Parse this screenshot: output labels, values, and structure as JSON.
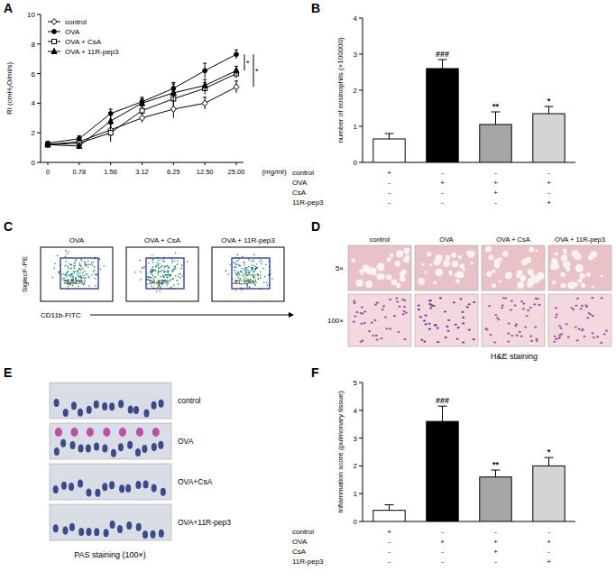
{
  "chart_data": [
    {
      "type": "line",
      "y_label": "RI (cmH₂O/ml/s)",
      "x_label": "(mg/ml)",
      "categories": [
        "0",
        "0.78",
        "1.56",
        "3.12",
        "6.25",
        "12.50",
        "25.00"
      ],
      "series": [
        {
          "name": "control",
          "color": "#000000",
          "marker": "diamond",
          "values": [
            1.2,
            1.4,
            2.2,
            3.0,
            3.6,
            4.0,
            5.1
          ],
          "errors": [
            0.1,
            0.3,
            0.4,
            0.3,
            0.6,
            0.4,
            0.4
          ]
        },
        {
          "name": "OVA",
          "color": "#000000",
          "marker": "circle",
          "values": [
            1.3,
            1.6,
            3.3,
            4.1,
            5.0,
            6.2,
            7.3
          ],
          "errors": [
            0.1,
            0.2,
            0.3,
            0.3,
            0.4,
            0.5,
            0.3
          ]
        },
        {
          "name": "OVA + CsA",
          "color": "#000000",
          "marker": "square",
          "values": [
            1.2,
            1.3,
            2.0,
            3.5,
            4.3,
            5.0,
            6.0
          ],
          "errors": [
            0.1,
            0.2,
            0.6,
            0.3,
            0.5,
            0.4,
            0.3
          ]
        },
        {
          "name": "OVA + 11R-pep3",
          "color": "#000000",
          "marker": "triangle",
          "values": [
            1.2,
            1.1,
            2.8,
            4.0,
            4.7,
            5.2,
            6.2
          ],
          "errors": [
            0.1,
            0.2,
            0.4,
            0.3,
            0.6,
            0.4,
            0.3
          ]
        }
      ],
      "ylim": [
        0,
        10
      ],
      "yticks": [
        0,
        2,
        4,
        6,
        8,
        10
      ],
      "legend": "upper-left",
      "significance": [
        "*",
        "*"
      ]
    },
    {
      "type": "bar",
      "y_label": "number of eosinophils (×100000)",
      "values": [
        0.65,
        2.6,
        1.05,
        1.35
      ],
      "errors": [
        0.15,
        0.25,
        0.35,
        0.2
      ],
      "colors": [
        "#ffffff",
        "#000000",
        "#a6a6a6",
        "#d4d4d4"
      ],
      "annotations": [
        null,
        "###",
        "**",
        "*"
      ],
      "ylim": [
        0,
        4
      ],
      "yticks": [
        0,
        1,
        2,
        3,
        4
      ],
      "treatment_table": [
        {
          "label": "control",
          "signs": [
            "+",
            "-",
            "-",
            "-"
          ]
        },
        {
          "label": "OVA",
          "signs": [
            "-",
            "+",
            "+",
            "+"
          ]
        },
        {
          "label": "CsA",
          "signs": [
            "-",
            "-",
            "+",
            "-"
          ]
        },
        {
          "label": "11R-pep3",
          "signs": [
            "-",
            "-",
            "-",
            "+"
          ]
        }
      ]
    },
    {
      "type": "bar",
      "y_label": "Inflammation score (pulmonary tissue)",
      "values": [
        0.4,
        3.6,
        1.6,
        2.0
      ],
      "errors": [
        0.2,
        0.55,
        0.25,
        0.3
      ],
      "colors": [
        "#ffffff",
        "#000000",
        "#a6a6a6",
        "#d4d4d4"
      ],
      "annotations": [
        null,
        "###",
        "**",
        "*"
      ],
      "ylim": [
        0,
        5
      ],
      "yticks": [
        0,
        1,
        2,
        3,
        4,
        5
      ],
      "treatment_table": [
        {
          "label": "control",
          "signs": [
            "+",
            "-",
            "-",
            "-"
          ]
        },
        {
          "label": "OVA",
          "signs": [
            "-",
            "+",
            "+",
            "+"
          ]
        },
        {
          "label": "CsA",
          "signs": [
            "-",
            "-",
            "+",
            "-"
          ]
        },
        {
          "label": "11R-pep3",
          "signs": [
            "-",
            "-",
            "-",
            "+"
          ]
        }
      ]
    }
  ],
  "figure": {
    "panel_labels": [
      "A",
      "B",
      "C",
      "D",
      "E",
      "F"
    ],
    "flow": {
      "y_label": "SiglecF-PE",
      "x_label": "CD11b-FITC",
      "plots": [
        {
          "title": "OVA",
          "gate": "76.57%"
        },
        {
          "title": "OVA + CsA",
          "gate": "54.48%"
        },
        {
          "title": "OVA + 11R-pep3",
          "gate": "61.39%"
        }
      ]
    },
    "he": {
      "columns": [
        "control",
        "OVA",
        "OVA + CsA",
        "OVA + 11R-pep3"
      ],
      "rows": [
        "5×",
        "100×"
      ],
      "caption": "H&E staining"
    },
    "pas": {
      "rows": [
        "control",
        "OVA",
        "OVA+CsA",
        "OVA+11R-pep3"
      ],
      "caption": "PAS staining (100×)"
    }
  }
}
